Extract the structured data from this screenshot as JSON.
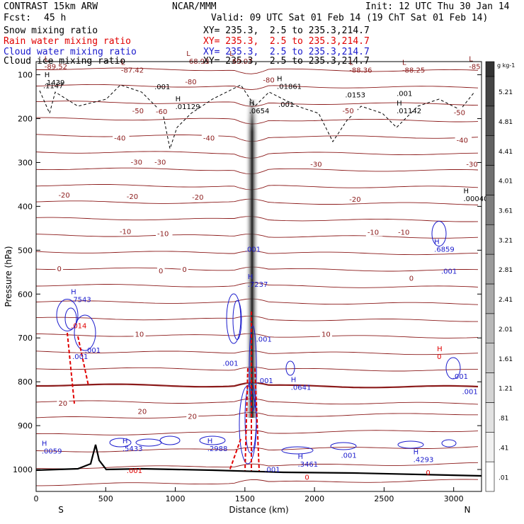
{
  "header": {
    "model": "CONTRAST 15km ARW",
    "org": "NCAR/MMM",
    "init": "Init: 12 UTC Thu 30 Jan 14",
    "fcst_label": "Fcst:",
    "fcst_value": "45 h",
    "valid": "Valid: 09 UTC Sat 01 Feb 14 (19 ChT Sat 01 Feb 14)"
  },
  "fields": [
    {
      "name": "Snow mixing ratio",
      "xy": "XY= 235.3,  2.5 to 235.3,214.7",
      "color": "#000000"
    },
    {
      "name": "Rain water mixing ratio",
      "xy": "XY= 235.3,  2.5 to 235.3,214.7",
      "color": "#e00000"
    },
    {
      "name": "Cloud water mixing ratio",
      "xy": "XY= 235.3,  2.5 to 235.3,214.7",
      "color": "#1a1acc"
    },
    {
      "name": "Cloud ice mixing ratio",
      "xy": "XY= 235.3,  2.5 to 235.3,214.7",
      "color": "#000000"
    }
  ],
  "chart_data": {
    "type": "cross-section contour",
    "xlabel": "Distance (km)",
    "ylabel": "Pressure (hPa)",
    "xlim": [
      0,
      3200
    ],
    "ylim": [
      1050,
      70
    ],
    "xticks": [
      0,
      500,
      1000,
      1500,
      2000,
      2500,
      3000
    ],
    "yticks": [
      100,
      200,
      300,
      400,
      500,
      600,
      700,
      800,
      900,
      1000
    ],
    "x_end_labels": {
      "left": "S",
      "right": "N"
    },
    "colorbar": {
      "unit": "g kg-1",
      "levels": [
        ".01",
        ".41",
        ".81",
        "1.21",
        "1.61",
        "2.01",
        "2.41",
        "2.81",
        "3.21",
        "3.61",
        "4.01",
        "4.41",
        "4.81",
        "5.21"
      ]
    },
    "isotherms": [
      {
        "label": "-80",
        "x": 1070,
        "p": 117
      },
      {
        "label": "-80",
        "x": 1630,
        "p": 113
      },
      {
        "label": "-60",
        "x": 860,
        "p": 185
      },
      {
        "label": "-50",
        "x": 690,
        "p": 183
      },
      {
        "label": "-50",
        "x": 2200,
        "p": 183
      },
      {
        "label": "-50",
        "x": 3000,
        "p": 187
      },
      {
        "label": "-40",
        "x": 560,
        "p": 245
      },
      {
        "label": "-40",
        "x": 1200,
        "p": 245
      },
      {
        "label": "-40",
        "x": 3020,
        "p": 250
      },
      {
        "label": "-30",
        "x": 680,
        "p": 300
      },
      {
        "label": "-30",
        "x": 850,
        "p": 300
      },
      {
        "label": "-30",
        "x": 1970,
        "p": 305
      },
      {
        "label": "-30",
        "x": 3090,
        "p": 305
      },
      {
        "label": "-20",
        "x": 160,
        "p": 375
      },
      {
        "label": "-20",
        "x": 650,
        "p": 378
      },
      {
        "label": "-20",
        "x": 1120,
        "p": 380
      },
      {
        "label": "-20",
        "x": 2250,
        "p": 385
      },
      {
        "label": "-10",
        "x": 600,
        "p": 458
      },
      {
        "label": "-10",
        "x": 870,
        "p": 463
      },
      {
        "label": "-10",
        "x": 2380,
        "p": 460
      },
      {
        "label": "-10",
        "x": 2600,
        "p": 460
      },
      {
        "label": "0",
        "x": 150,
        "p": 543
      },
      {
        "label": "0",
        "x": 880,
        "p": 548
      },
      {
        "label": "0",
        "x": 1050,
        "p": 545
      },
      {
        "label": "0",
        "x": 2680,
        "p": 565
      },
      {
        "label": "10",
        "x": 710,
        "p": 692
      },
      {
        "label": "10",
        "x": 2050,
        "p": 692
      },
      {
        "label": "20",
        "x": 160,
        "p": 850
      },
      {
        "label": "20",
        "x": 730,
        "p": 868
      },
      {
        "label": "20",
        "x": 1090,
        "p": 880
      }
    ],
    "lows": [
      {
        "label": "L",
        "x": 60,
        "p": 84,
        "value": "-89.52"
      },
      {
        "label": "L",
        "x": 610,
        "p": 92,
        "value": "-87.42"
      },
      {
        "label": "L",
        "x": 1080,
        "p": 72,
        "value": "-68.93"
      },
      {
        "label": "L",
        "x": 1390,
        "p": 72,
        "value": "-69.07"
      },
      {
        "label": "L",
        "x": 2250,
        "p": 92,
        "value": "-88.36"
      },
      {
        "label": "L",
        "x": 2630,
        "p": 92,
        "value": "-88.25"
      },
      {
        "label": "L",
        "x": 3110,
        "p": 84,
        "value": "-85"
      }
    ],
    "ice_maxima": [
      {
        "label": "",
        "x": 50,
        "p": 127,
        "value": ".1147"
      },
      {
        "label": "H",
        "x": 60,
        "p": 120,
        "value": ".1439"
      },
      {
        "label": "",
        "x": 850,
        "p": 130,
        "value": ".001"
      },
      {
        "label": "H",
        "x": 1000,
        "p": 175,
        "value": ".01129"
      },
      {
        "label": "H",
        "x": 1730,
        "p": 129,
        "value": ".01861"
      },
      {
        "label": "",
        "x": 1740,
        "p": 170,
        "value": ".001"
      },
      {
        "label": "",
        "x": 2220,
        "p": 148,
        "value": ".0153"
      },
      {
        "label": "",
        "x": 2590,
        "p": 145,
        "value": ".001"
      },
      {
        "label": "H",
        "x": 2590,
        "p": 185,
        "value": ".01142"
      },
      {
        "label": "H",
        "x": 1530,
        "p": 185,
        "value": ".0654"
      },
      {
        "label": "H",
        "x": 3070,
        "p": 385,
        "value": ".00040"
      }
    ],
    "cloud_water_labels": [
      {
        "label": "H",
        "x": 250,
        "p": 615,
        "value": ".7543"
      },
      {
        "label": "",
        "x": 260,
        "p": 745,
        "value": ".001"
      },
      {
        "label": "",
        "x": 350,
        "p": 730,
        "value": ".001"
      },
      {
        "label": "H",
        "x": 1520,
        "p": 580,
        "value": ".7237"
      },
      {
        "label": "",
        "x": 1500,
        "p": 500,
        "value": ".001"
      },
      {
        "label": "",
        "x": 1340,
        "p": 760,
        "value": ".001"
      },
      {
        "label": "",
        "x": 1580,
        "p": 705,
        "value": ".001"
      },
      {
        "label": "",
        "x": 1590,
        "p": 800,
        "value": ".001"
      },
      {
        "label": "H",
        "x": 1830,
        "p": 815,
        "value": ".0641"
      },
      {
        "label": "H",
        "x": 2860,
        "p": 500,
        "value": ".6859"
      },
      {
        "label": "",
        "x": 2910,
        "p": 550,
        "value": ".001"
      },
      {
        "label": "",
        "x": 2990,
        "p": 790,
        "value": ".001"
      },
      {
        "label": "",
        "x": 3060,
        "p": 825,
        "value": ".001"
      },
      {
        "label": "H",
        "x": 40,
        "p": 960,
        "value": ".0059"
      },
      {
        "label": "H",
        "x": 620,
        "p": 955,
        "value": ".5433"
      },
      {
        "label": "H",
        "x": 1230,
        "p": 955,
        "value": ".2988"
      },
      {
        "label": "",
        "x": 1640,
        "p": 1002,
        "value": ".001"
      },
      {
        "label": "H",
        "x": 1880,
        "p": 990,
        "value": ".3461"
      },
      {
        "label": "",
        "x": 2190,
        "p": 970,
        "value": ".001"
      },
      {
        "label": "H",
        "x": 2710,
        "p": 980,
        "value": ".4293"
      }
    ],
    "rain_labels": [
      {
        "label": "",
        "x": 250,
        "p": 675,
        "value": ".014"
      },
      {
        "label": "",
        "x": 650,
        "p": 1005,
        "value": ".001"
      },
      {
        "label": "H",
        "x": 2880,
        "p": 745,
        "value": "0"
      },
      {
        "label": "",
        "x": 2800,
        "p": 1010,
        "value": "0"
      },
      {
        "label": "",
        "x": 1930,
        "p": 1020,
        "value": "0"
      }
    ]
  }
}
